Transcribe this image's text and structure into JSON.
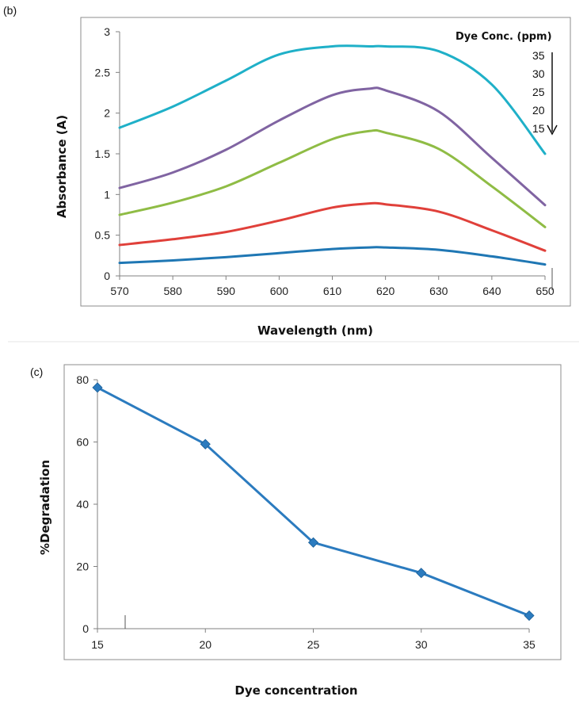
{
  "chart_data": [
    {
      "panel": "(b)",
      "type": "line",
      "xlabel": "Wavelength (nm)",
      "ylabel": "Absorbance (A)",
      "xlim": [
        570,
        650
      ],
      "ylim": [
        0,
        3
      ],
      "xticks": [
        "570",
        "580",
        "590",
        "600",
        "610",
        "620",
        "630",
        "640",
        "650"
      ],
      "yticks": [
        "0",
        "0.5",
        "1",
        "1.5",
        "2",
        "2.5",
        "3"
      ],
      "legend_title": "Dye Conc. (ppm)",
      "legend_labels": [
        "35",
        "30",
        "25",
        "20",
        "15"
      ],
      "x": [
        570,
        580,
        590,
        600,
        610,
        617,
        620,
        630,
        640,
        650
      ],
      "series": [
        {
          "name": "15",
          "color": "#1f77b4",
          "values": [
            0.16,
            0.19,
            0.23,
            0.28,
            0.33,
            0.35,
            0.35,
            0.32,
            0.24,
            0.14
          ]
        },
        {
          "name": "20",
          "color": "#e0403a",
          "values": [
            0.38,
            0.45,
            0.54,
            0.68,
            0.84,
            0.89,
            0.88,
            0.79,
            0.56,
            0.31
          ]
        },
        {
          "name": "25",
          "color": "#8fbc45",
          "values": [
            0.75,
            0.9,
            1.1,
            1.39,
            1.68,
            1.78,
            1.76,
            1.56,
            1.1,
            0.6
          ]
        },
        {
          "name": "30",
          "color": "#8064a2",
          "values": [
            1.08,
            1.27,
            1.55,
            1.91,
            2.22,
            2.3,
            2.28,
            2.02,
            1.45,
            0.87
          ]
        },
        {
          "name": "35",
          "color": "#1fb0c8",
          "values": [
            1.82,
            2.08,
            2.4,
            2.72,
            2.82,
            2.82,
            2.82,
            2.76,
            2.35,
            1.5
          ]
        }
      ]
    },
    {
      "panel": "(c)",
      "type": "line",
      "xlabel": "Dye concentration",
      "ylabel": "%Degradation",
      "xlim": [
        15,
        35
      ],
      "ylim": [
        0,
        80
      ],
      "xticks": [
        "15",
        "20",
        "25",
        "30",
        "35"
      ],
      "yticks": [
        "0",
        "20",
        "40",
        "60",
        "80"
      ],
      "series": [
        {
          "name": "%Degradation",
          "color": "#2b7bbf",
          "x": [
            15,
            20,
            25,
            30,
            35
          ],
          "values": [
            77.5,
            59.3,
            27.7,
            17.9,
            4.2
          ]
        }
      ]
    }
  ]
}
